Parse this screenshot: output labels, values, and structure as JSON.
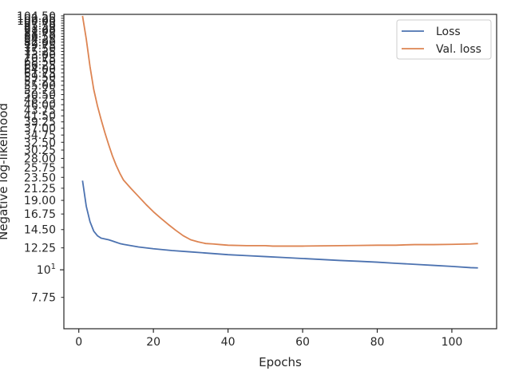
{
  "chart_data": {
    "type": "line",
    "title": "",
    "xlabel": "Epochs",
    "ylabel": "Negative log-likelihood",
    "y_scale": "log",
    "xlim": [
      -4,
      112
    ],
    "ylim": [
      5.8,
      106
    ],
    "grid": false,
    "legend_position": "top-right",
    "x_ticks": [
      0,
      20,
      40,
      60,
      80,
      100
    ],
    "x_tick_labels": [
      "0",
      "20",
      "40",
      "60",
      "80",
      "100"
    ],
    "y_ticks": [
      7.75,
      12.25,
      14.5,
      16.75,
      19.0,
      21.25,
      23.5,
      25.75,
      28.0,
      30.25,
      32.5,
      34.75,
      37.0,
      39.25,
      41.5,
      43.75,
      46.0,
      48.25,
      50.5,
      52.75,
      55.0,
      57.25,
      59.5,
      61.75,
      64.0,
      66.25,
      68.5,
      70.75,
      73.0,
      75.25,
      77.5,
      79.75,
      82.0,
      84.25,
      86.5,
      88.75,
      91.0,
      93.25,
      95.5,
      97.75,
      100.0,
      102.25,
      104.5
    ],
    "y_tick_labels": [
      "7.75",
      "12.25",
      "14.50",
      "16.75",
      "19.00",
      "21.25",
      "23.50",
      "25.75",
      "28.00",
      "30.25",
      "32.50",
      "34.75",
      "37.00",
      "39.25",
      "41.50",
      "43.75",
      "46.00",
      "48.25",
      "50.50",
      "52.75",
      "55.00",
      "57.25",
      "59.50",
      "61.75",
      "64.00",
      "66.25",
      "68.50",
      "70.75",
      "73.00",
      "75.25",
      "77.50",
      "79.75",
      "82.00",
      "84.25",
      "86.50",
      "88.75",
      "91.00",
      "93.25",
      "95.50",
      "97.75",
      "100.00",
      "102.25",
      "104.50"
    ],
    "major_tick": {
      "value": 10,
      "base": "10",
      "exponent": "1"
    },
    "series": [
      {
        "name": "Loss",
        "color": "#4c72b0",
        "x": [
          1,
          2,
          3,
          4,
          5,
          6,
          7,
          8,
          9,
          10,
          11,
          12,
          14,
          16,
          18,
          20,
          25,
          30,
          35,
          40,
          45,
          50,
          55,
          60,
          65,
          70,
          75,
          80,
          85,
          90,
          95,
          100,
          105,
          107
        ],
        "y": [
          22.8,
          18.0,
          15.6,
          14.3,
          13.7,
          13.4,
          13.3,
          13.2,
          13.05,
          12.9,
          12.75,
          12.65,
          12.5,
          12.35,
          12.25,
          12.15,
          11.95,
          11.8,
          11.65,
          11.5,
          11.4,
          11.3,
          11.2,
          11.1,
          11.0,
          10.9,
          10.82,
          10.73,
          10.62,
          10.52,
          10.42,
          10.32,
          10.2,
          10.18
        ]
      },
      {
        "name": "Val. loss",
        "color": "#dd8452",
        "x": [
          1,
          2,
          3,
          4,
          5,
          6,
          7,
          8,
          9,
          10,
          11,
          12,
          14,
          16,
          18,
          20,
          22,
          24,
          26,
          28,
          30,
          32,
          34,
          36,
          38,
          40,
          45,
          50,
          52,
          55,
          60,
          65,
          70,
          75,
          80,
          85,
          88,
          90,
          95,
          100,
          105,
          107
        ],
        "y": [
          104.5,
          84.5,
          65.5,
          53.0,
          45.5,
          40.0,
          35.5,
          31.8,
          28.7,
          26.3,
          24.4,
          22.9,
          21.2,
          19.7,
          18.3,
          17.1,
          16.1,
          15.2,
          14.4,
          13.7,
          13.2,
          12.95,
          12.75,
          12.7,
          12.62,
          12.55,
          12.5,
          12.5,
          12.45,
          12.45,
          12.45,
          12.48,
          12.5,
          12.52,
          12.55,
          12.55,
          12.6,
          12.62,
          12.62,
          12.65,
          12.7,
          12.75
        ]
      }
    ]
  }
}
